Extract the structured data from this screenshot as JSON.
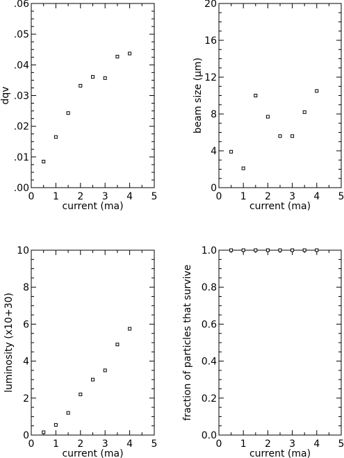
{
  "chart_data": [
    {
      "type": "scatter",
      "xlabel": "current (ma)",
      "ylabel": "dqv",
      "xlim": [
        0,
        5
      ],
      "ylim": [
        0,
        0.06
      ],
      "xticks": [
        "0",
        "1",
        "2",
        "3",
        "4",
        "5"
      ],
      "yticks": [
        ".00",
        ".01",
        ".02",
        ".03",
        ".04",
        ".05",
        ".06"
      ],
      "x": [
        0.5,
        1.0,
        1.5,
        2.0,
        2.5,
        3.0,
        3.5,
        4.0
      ],
      "y": [
        0.0085,
        0.0165,
        0.0243,
        0.0332,
        0.0361,
        0.0357,
        0.0427,
        0.0437
      ]
    },
    {
      "type": "scatter",
      "xlabel": "current (ma)",
      "ylabel": "beam size (μm)",
      "xlim": [
        0,
        5
      ],
      "ylim": [
        0,
        20
      ],
      "xticks": [
        "0",
        "1",
        "2",
        "3",
        "4",
        "5"
      ],
      "yticks": [
        "0",
        "4",
        "8",
        "12",
        "16",
        "20"
      ],
      "x": [
        0.5,
        1.0,
        1.5,
        2.0,
        2.5,
        3.0,
        3.5,
        4.0
      ],
      "y": [
        3.9,
        2.1,
        10.0,
        7.7,
        5.6,
        5.6,
        8.2,
        10.5
      ]
    },
    {
      "type": "scatter",
      "xlabel": "current (ma)",
      "ylabel": "luminosity (x10+30)",
      "xlim": [
        0,
        5
      ],
      "ylim": [
        0,
        10
      ],
      "xticks": [
        "0",
        "1",
        "2",
        "3",
        "4",
        "5"
      ],
      "yticks": [
        "0",
        "2",
        "4",
        "6",
        "8",
        "10"
      ],
      "x": [
        0.5,
        1.0,
        1.5,
        2.0,
        2.5,
        3.0,
        3.5,
        4.0
      ],
      "y": [
        0.15,
        0.55,
        1.2,
        2.2,
        3.0,
        3.5,
        4.9,
        5.75
      ]
    },
    {
      "type": "scatter",
      "xlabel": "current (ma)",
      "ylabel": "fraction of particles that survive",
      "xlim": [
        0,
        5
      ],
      "ylim": [
        0,
        1
      ],
      "xticks": [
        "0",
        "1",
        "2",
        "3",
        "4",
        "5"
      ],
      "yticks": [
        "0.0",
        "0.2",
        "0.4",
        "0.6",
        "0.8",
        "1.0"
      ],
      "x": [
        0.5,
        1.0,
        1.5,
        2.0,
        2.5,
        3.0,
        3.5,
        4.0
      ],
      "y": [
        1.0,
        1.0,
        1.0,
        1.0,
        1.0,
        1.0,
        1.0,
        1.0
      ]
    }
  ]
}
